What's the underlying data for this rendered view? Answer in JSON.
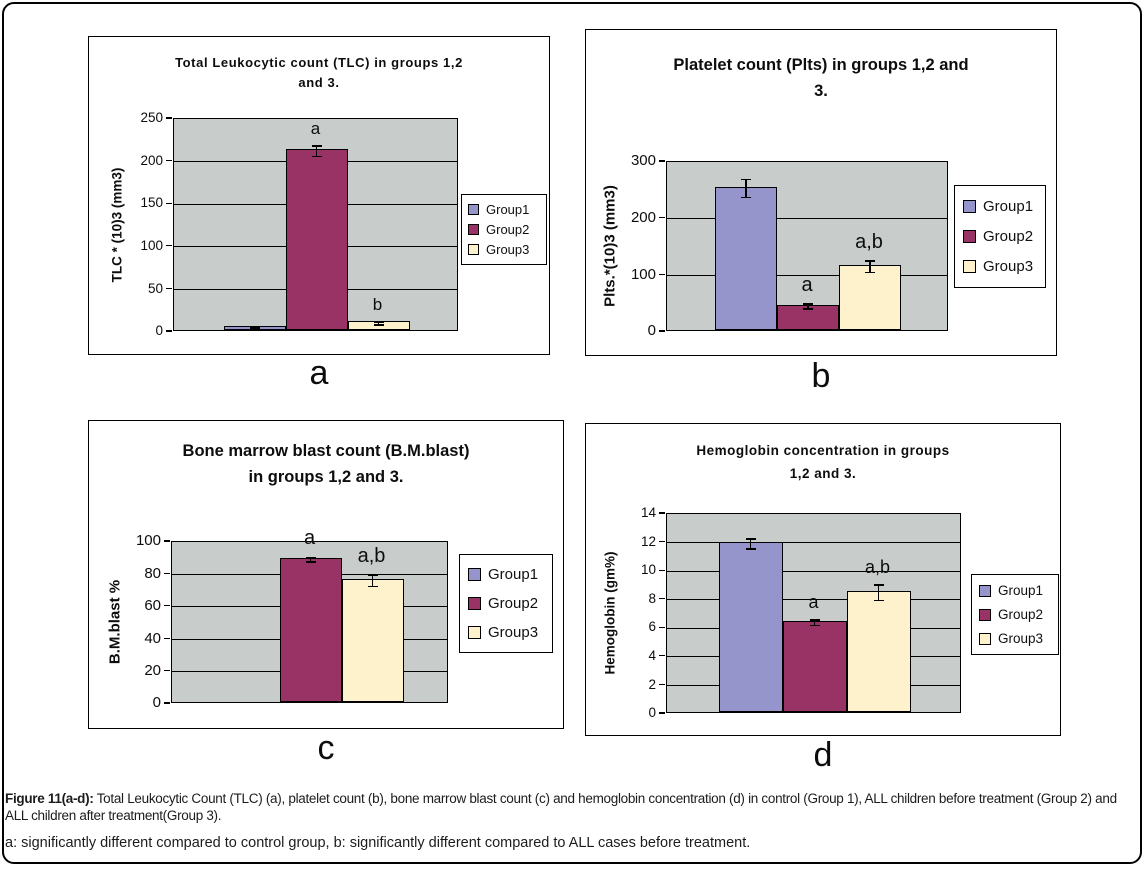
{
  "figure": {
    "letters": [
      "a",
      "b",
      "c",
      "d"
    ]
  },
  "caption": {
    "label": "Figure 11(a-d):",
    "text": "Total Leukocytic Count (TLC) (a), platelet count (b), bone marrow blast count (c) and hemoglobin concentration (d) in control (Group 1), ALL children before treatment (Group 2) and ALL children after treatment(Group 3).",
    "note": "a: significantly different compared to control group, b: significantly different compared to ALL cases before treatment."
  },
  "colors": {
    "group1": "#9695CB",
    "group2": "#993366",
    "group3": "#FDF2CC",
    "plot_bg": "#C8CCCB",
    "grid": "#000000"
  },
  "chart_data": [
    {
      "id": "a",
      "type": "bar",
      "title": "Total Leukocytic count (TLC) in groups 1,2 and 3.",
      "title_lines": [
        "Total Leukocytic count (TLC) in groups 1,2",
        "and 3."
      ],
      "xlabel": "",
      "ylabel": "TLC * (10)3 (mm3)",
      "ylim": [
        0,
        250
      ],
      "yticks": [
        0,
        50,
        100,
        150,
        200,
        250
      ],
      "categories": [
        "Group1",
        "Group2",
        "Group3"
      ],
      "values": [
        5,
        212,
        10
      ],
      "errors": [
        1,
        6,
        1.5
      ],
      "sig_labels": [
        "",
        "a",
        "b"
      ],
      "legend": [
        "Group1",
        "Group2",
        "Group3"
      ],
      "legend_position": "right",
      "grid": true
    },
    {
      "id": "b",
      "type": "bar",
      "title": "Platelet count (Plts) in groups 1,2 and 3.",
      "title_lines": [
        "Platelet count (Plts) in groups 1,2 and",
        "3."
      ],
      "xlabel": "",
      "ylabel": "Plts.*(10)3 (mm3)",
      "ylim": [
        0,
        300
      ],
      "yticks": [
        0,
        100,
        200,
        300
      ],
      "categories": [
        "Group1",
        "Group2",
        "Group3"
      ],
      "values": [
        253,
        45,
        115
      ],
      "errors": [
        16,
        4,
        10
      ],
      "sig_labels": [
        "",
        "a",
        "a,b"
      ],
      "legend": [
        "Group1",
        "Group2",
        "Group3"
      ],
      "legend_position": "right",
      "grid": true
    },
    {
      "id": "c",
      "type": "bar",
      "title": "Bone marrow blast count (B.M.blast) in groups 1,2 and 3.",
      "title_lines": [
        "Bone marrow blast count (B.M.blast)",
        "in groups 1,2 and 3."
      ],
      "xlabel": "",
      "ylabel": "B.M.blast %",
      "ylim": [
        0,
        100
      ],
      "yticks": [
        0,
        20,
        40,
        60,
        80,
        100
      ],
      "categories": [
        "Group1",
        "Group2",
        "Group3"
      ],
      "values": [
        0,
        89,
        76
      ],
      "errors": [
        0,
        1.5,
        3.5
      ],
      "sig_labels": [
        "",
        "a",
        "a,b"
      ],
      "legend": [
        "Group1",
        "Group2",
        "Group3"
      ],
      "legend_position": "right",
      "grid": true
    },
    {
      "id": "d",
      "type": "bar",
      "title": "Hemoglobin concentration in groups 1,2 and 3.",
      "title_lines": [
        "Hemoglobin concentration in groups",
        "1,2 and 3."
      ],
      "xlabel": "",
      "ylabel": "Hemoglobin (gm%)",
      "ylim": [
        0,
        14
      ],
      "yticks": [
        0,
        2,
        4,
        6,
        8,
        10,
        12,
        14
      ],
      "categories": [
        "Group1",
        "Group2",
        "Group3"
      ],
      "values": [
        11.9,
        6.4,
        8.5
      ],
      "errors": [
        0.35,
        0.2,
        0.55
      ],
      "sig_labels": [
        "",
        "a",
        "a,b"
      ],
      "legend": [
        "Group1",
        "Group2",
        "Group3"
      ],
      "legend_position": "right",
      "grid": true
    }
  ]
}
